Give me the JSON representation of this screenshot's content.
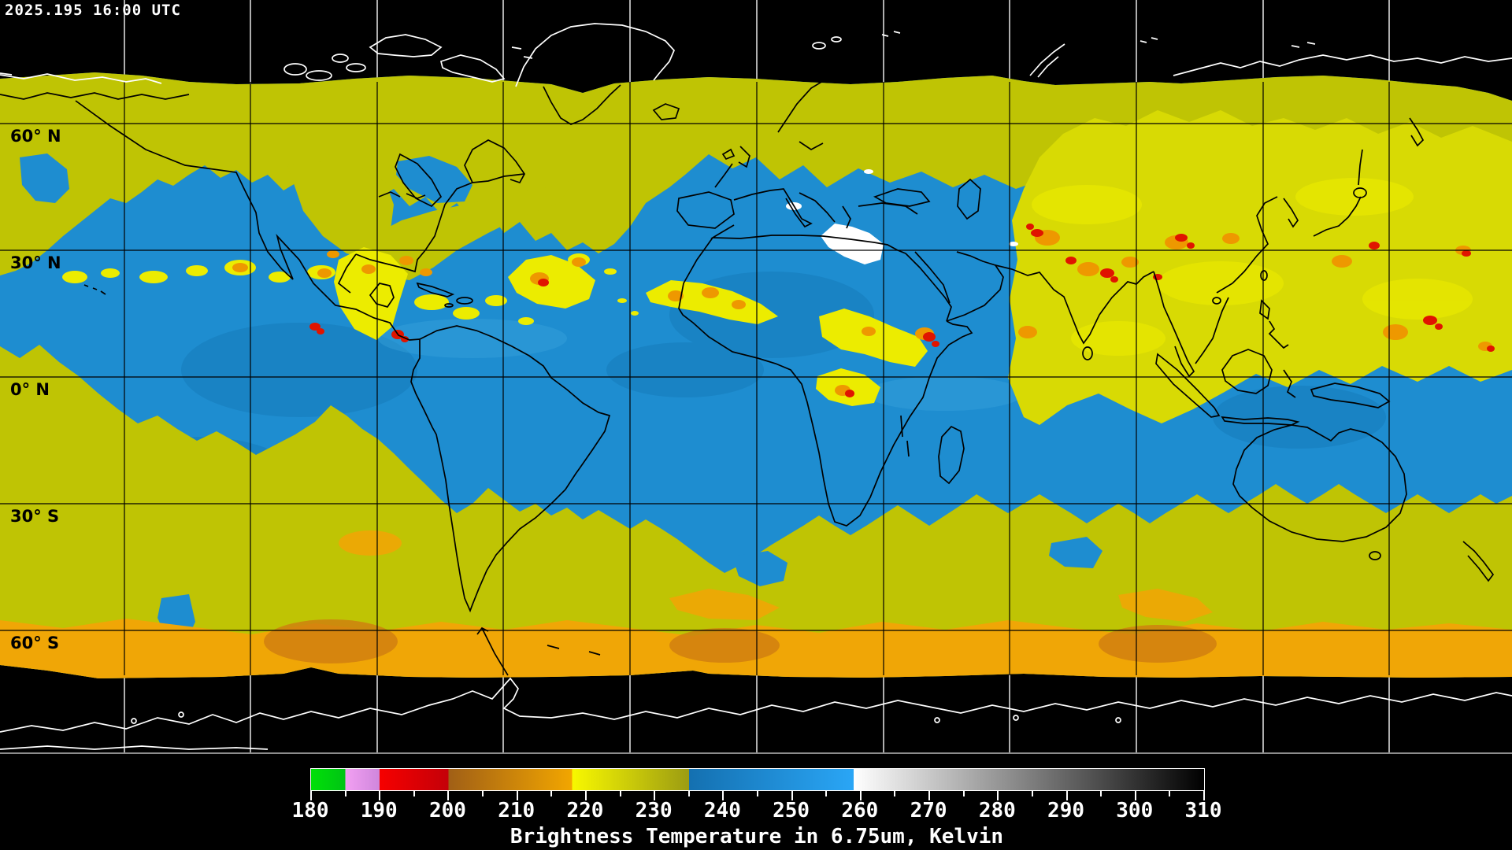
{
  "header": {
    "timestamp": "2025.195 16:00 UTC"
  },
  "map": {
    "latitude_labels": [
      "60° N",
      "30° N",
      "0° N",
      "30° S",
      "60° S"
    ]
  },
  "colorbar": {
    "caption": "Brightness Temperature in 6.75um, Kelvin",
    "tick_labels": [
      "180",
      "190",
      "200",
      "210",
      "220",
      "230",
      "240",
      "250",
      "260",
      "270",
      "280",
      "290",
      "300",
      "310"
    ],
    "range_min": 180,
    "range_max": 310,
    "major_tick_step": 10,
    "minor_tick_step": 5,
    "segments": [
      {
        "from": 180,
        "to": 185,
        "color_start": "#00e008",
        "color_end": "#00c414"
      },
      {
        "from": 185,
        "to": 190,
        "color_start": "#f2a0f2",
        "color_end": "#cf86dc"
      },
      {
        "from": 190,
        "to": 200,
        "color_start": "#f60000",
        "color_end": "#c40008"
      },
      {
        "from": 200,
        "to": 218,
        "color_start": "#a05f16",
        "color_end": "#f2a600"
      },
      {
        "from": 218,
        "to": 235,
        "color_start": "#f8f800",
        "color_end": "#9c9c12"
      },
      {
        "from": 235,
        "to": 259,
        "color_start": "#1470b0",
        "color_end": "#2aa6f6"
      },
      {
        "from": 259,
        "to": 310,
        "color_start": "#ffffff",
        "color_end": "#000000"
      }
    ]
  },
  "palette": {
    "sky_black": "#000000",
    "ocean_blue": "#1e8dd0",
    "ocean_blue_dark": "#1478b6",
    "ocean_blue_bright": "#3fa8e0",
    "band_yellow": "#bfc404",
    "band_yellow_bright": "#d8da04",
    "convect_yellow": "#ecec00",
    "convect_orange": "#ee9800",
    "convect_red": "#e01400",
    "antarctic_orange": "#f0a606",
    "antarctic_brown": "#cf7d10",
    "cloud_white": "#ffffff",
    "coast_black": "#000000",
    "coast_white": "#ffffff",
    "grid_black": "#000000",
    "grid_white": "#e8e8e8",
    "frame_gray": "#8c8c8c",
    "label_black": "#000000",
    "text_white": "#ffffff"
  }
}
